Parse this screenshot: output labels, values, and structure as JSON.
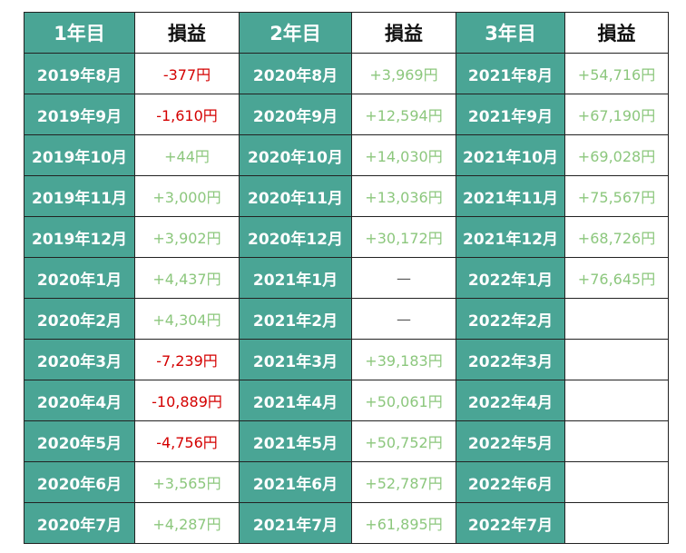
{
  "headers": {
    "year1": "1年目",
    "pl1": "損益",
    "year2": "2年目",
    "pl2": "損益",
    "year3": "3年目",
    "pl3": "損益"
  },
  "colors": {
    "header_bg": "#4aa595",
    "negative": "#d40000",
    "positive": "#8cc77d"
  },
  "rows": [
    {
      "m1": "2019年8月",
      "v1": "-377円",
      "t1": "neg",
      "m2": "2020年8月",
      "v2": "+3,969円",
      "t2": "pos",
      "m3": "2021年8月",
      "v3": "+54,716円",
      "t3": "pos"
    },
    {
      "m1": "2019年9月",
      "v1": "-1,610円",
      "t1": "neg",
      "m2": "2020年9月",
      "v2": "+12,594円",
      "t2": "pos",
      "m3": "2021年9月",
      "v3": "+67,190円",
      "t3": "pos"
    },
    {
      "m1": "2019年10月",
      "v1": "+44円",
      "t1": "pos",
      "m2": "2020年10月",
      "v2": "+14,030円",
      "t2": "pos",
      "m3": "2021年10月",
      "v3": "+69,028円",
      "t3": "pos"
    },
    {
      "m1": "2019年11月",
      "v1": "+3,000円",
      "t1": "pos",
      "m2": "2020年11月",
      "v2": "+13,036円",
      "t2": "pos",
      "m3": "2021年11月",
      "v3": "+75,567円",
      "t3": "pos"
    },
    {
      "m1": "2019年12月",
      "v1": "+3,902円",
      "t1": "pos",
      "m2": "2020年12月",
      "v2": "+30,172円",
      "t2": "pos",
      "m3": "2021年12月",
      "v3": "+68,726円",
      "t3": "pos"
    },
    {
      "m1": "2020年1月",
      "v1": "+4,437円",
      "t1": "pos",
      "m2": "2021年1月",
      "v2": "—",
      "t2": "none",
      "m3": "2022年1月",
      "v3": "+76,645円",
      "t3": "pos"
    },
    {
      "m1": "2020年2月",
      "v1": "+4,304円",
      "t1": "pos",
      "m2": "2021年2月",
      "v2": "—",
      "t2": "none",
      "m3": "2022年2月",
      "v3": "",
      "t3": "none"
    },
    {
      "m1": "2020年3月",
      "v1": "-7,239円",
      "t1": "neg",
      "m2": "2021年3月",
      "v2": "+39,183円",
      "t2": "pos",
      "m3": "2022年3月",
      "v3": "",
      "t3": "none"
    },
    {
      "m1": "2020年4月",
      "v1": "-10,889円",
      "t1": "neg",
      "m2": "2021年4月",
      "v2": "+50,061円",
      "t2": "pos",
      "m3": "2022年4月",
      "v3": "",
      "t3": "none"
    },
    {
      "m1": "2020年5月",
      "v1": "-4,756円",
      "t1": "neg",
      "m2": "2021年5月",
      "v2": "+50,752円",
      "t2": "pos",
      "m3": "2022年5月",
      "v3": "",
      "t3": "none"
    },
    {
      "m1": "2020年6月",
      "v1": "+3,565円",
      "t1": "pos",
      "m2": "2021年6月",
      "v2": "+52,787円",
      "t2": "pos",
      "m3": "2022年6月",
      "v3": "",
      "t3": "none"
    },
    {
      "m1": "2020年7月",
      "v1": "+4,287円",
      "t1": "pos",
      "m2": "2021年7月",
      "v2": "+61,895円",
      "t2": "pos",
      "m3": "2022年7月",
      "v3": "",
      "t3": "none"
    }
  ]
}
